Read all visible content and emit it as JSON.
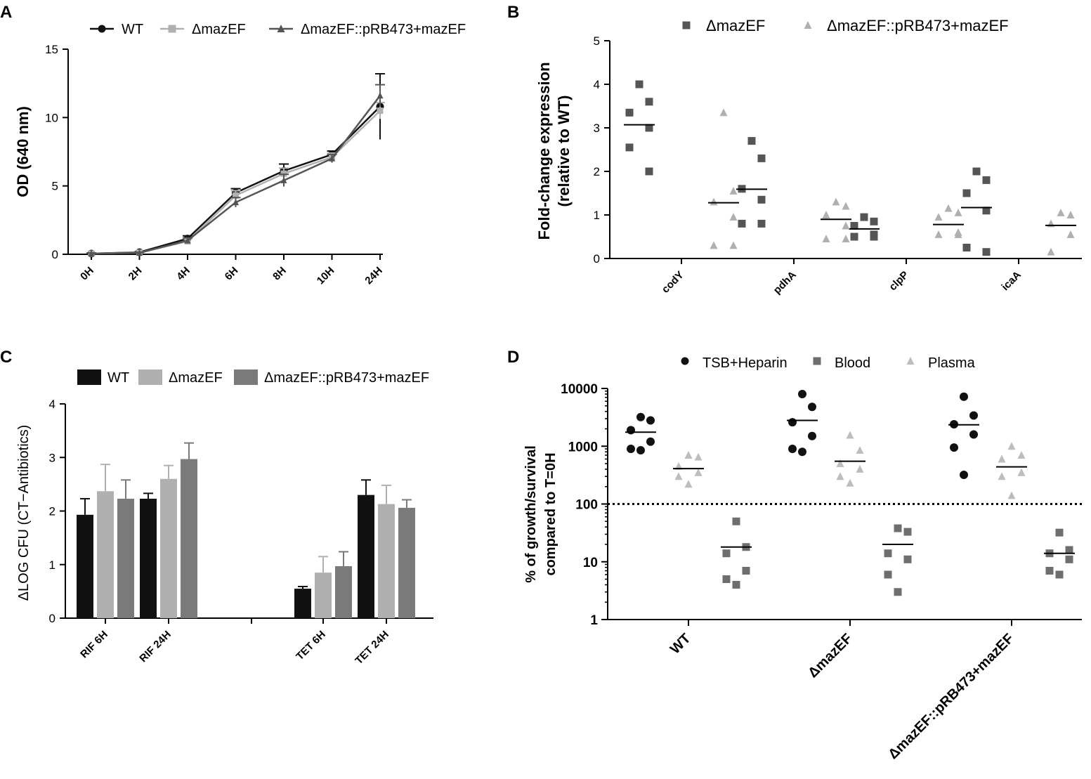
{
  "colors": {
    "black": "#111111",
    "light": "#b0b0b0",
    "mid": "#7a7a7a",
    "dark": "#555555",
    "blood": "#6e6e6e",
    "plasma": "#bdbdbd"
  },
  "chart_data": [
    {
      "panel": "A",
      "type": "line",
      "xlabel": "",
      "ylabel": "OD (640 nm)",
      "categories": [
        "0H",
        "2H",
        "4H",
        "6H",
        "8H",
        "10H",
        "24H"
      ],
      "yticks": [
        0,
        5,
        10,
        15
      ],
      "ylim": [
        0,
        15
      ],
      "legend": "top",
      "series": [
        {
          "name": "WT",
          "marker": "circle",
          "color": "#111111",
          "values": [
            0.05,
            0.15,
            1.15,
            4.5,
            6.1,
            7.3,
            10.8
          ],
          "err": [
            0.05,
            0.05,
            0.2,
            0.3,
            0.5,
            0.25,
            2.4
          ]
        },
        {
          "name": "ΔmazEF",
          "marker": "square",
          "color": "#b0b0b0",
          "values": [
            0.05,
            0.12,
            0.95,
            4.3,
            5.9,
            7.1,
            10.5
          ],
          "err": [
            0.05,
            0.05,
            0.2,
            0.35,
            0.4,
            0.3,
            0.6
          ]
        },
        {
          "name": "ΔmazEF::pRB473+mazEF",
          "marker": "triangle",
          "color": "#555555",
          "values": [
            0.05,
            0.1,
            1.0,
            3.8,
            5.4,
            7.0,
            11.6
          ],
          "err": [
            0.05,
            0.05,
            0.2,
            0.35,
            0.45,
            0.3,
            0.8
          ]
        }
      ]
    },
    {
      "panel": "B",
      "type": "scatter",
      "ylabel": "Fold-change expression (relative to WT)",
      "ylabel_line1": "Fold-change expression",
      "ylabel_line2": "(relative to WT)",
      "categories": [
        "codY",
        "pdhA",
        "clpP",
        "icaA"
      ],
      "yticks": [
        0,
        1,
        2,
        3,
        4,
        5
      ],
      "ylim": [
        0,
        5
      ],
      "legend": "top",
      "series": [
        {
          "name": "ΔmazEF",
          "marker": "square",
          "color": "#555555",
          "points": [
            [
              4.0,
              3.6,
              3.35,
              3.0,
              2.55,
              2.0
            ],
            [
              2.7,
              2.3,
              1.6,
              1.35,
              0.8,
              0.8
            ],
            [
              0.95,
              0.85,
              0.75,
              0.55,
              0.5,
              0.5
            ],
            [
              2.0,
              1.8,
              1.5,
              1.1,
              0.25,
              0.15
            ]
          ],
          "means": [
            3.07,
            1.59,
            0.68,
            1.17
          ]
        },
        {
          "name": "ΔmazEF::pRB473+mazEF",
          "marker": "triangle",
          "color": "#b0b0b0",
          "points": [
            [
              3.35,
              1.55,
              1.3,
              0.95,
              0.3,
              0.3
            ],
            [
              1.3,
              1.2,
              1.0,
              0.75,
              0.45,
              0.45
            ],
            [
              1.15,
              1.05,
              0.95,
              0.6,
              0.55,
              0.55
            ],
            [
              1.05,
              1.0,
              0.8,
              0.55,
              0.15
            ]
          ],
          "means": [
            1.28,
            0.9,
            0.78,
            0.76
          ]
        }
      ]
    },
    {
      "panel": "C",
      "type": "bar",
      "ylabel": "ΔLOG CFU (CT−Antibiotics)",
      "categories": [
        "RIF 6H",
        "RIF 24H",
        "",
        "TET 6H",
        "TET 24H"
      ],
      "yticks": [
        0,
        1,
        2,
        3,
        4
      ],
      "ylim": [
        0,
        4
      ],
      "legend": "top",
      "series": [
        {
          "name": "WT",
          "color": "#111111",
          "values": [
            1.93,
            2.23,
            null,
            0.55,
            2.3
          ],
          "err": [
            0.3,
            0.1,
            null,
            0.04,
            0.28
          ]
        },
        {
          "name": "ΔmazEF",
          "color": "#b0b0b0",
          "values": [
            2.37,
            2.6,
            null,
            0.85,
            2.13
          ],
          "err": [
            0.5,
            0.25,
            null,
            0.3,
            0.35
          ]
        },
        {
          "name": "ΔmazEF::pRB473+mazEF",
          "color": "#7a7a7a",
          "values": [
            2.23,
            2.97,
            null,
            0.97,
            2.06
          ],
          "err": [
            0.35,
            0.3,
            null,
            0.27,
            0.15
          ]
        }
      ]
    },
    {
      "panel": "D",
      "type": "scatter",
      "scale": "log",
      "ylabel": "% of growth/survival compared to T=0H",
      "ylabel_line1": "% of growth/survival",
      "ylabel_line2": "compared to T=0H",
      "categories": [
        "WT",
        "ΔmazEF",
        "ΔmazEF::pRB473+mazEF"
      ],
      "yticks": [
        1,
        10,
        100,
        1000,
        10000
      ],
      "ytick_labels": [
        "1",
        "10",
        "100",
        "1000",
        "10000"
      ],
      "ylim": [
        1,
        10000
      ],
      "reference_line": 100,
      "legend": "top",
      "series": [
        {
          "name": "TSB+Heparin",
          "marker": "circle",
          "color": "#111111",
          "points": [
            [
              3200,
              2800,
              1900,
              1200,
              900,
              850
            ],
            [
              8000,
              4800,
              2600,
              1500,
              900,
              800
            ],
            [
              7200,
              3400,
              2400,
              1600,
              950,
              320
            ]
          ],
          "means": [
            1750,
            2800,
            2350
          ]
        },
        {
          "name": "Blood",
          "marker": "square",
          "color": "#6e6e6e",
          "points": [
            [
              50,
              18,
              14,
              7,
              5,
              4
            ],
            [
              38,
              33,
              14,
              11,
              6,
              3
            ],
            [
              32,
              16,
              14,
              11,
              7,
              6
            ]
          ],
          "means": [
            18,
            20,
            14
          ]
        },
        {
          "name": "Plasma",
          "marker": "triangle",
          "color": "#bdbdbd",
          "points": [
            [
              700,
              650,
              450,
              350,
              300,
              220
            ],
            [
              1550,
              850,
              500,
              400,
              300,
              230
            ],
            [
              1000,
              700,
              600,
              350,
              300,
              140
            ]
          ],
          "means": [
            410,
            550,
            440
          ]
        }
      ]
    }
  ],
  "panel_labels": [
    "A",
    "B",
    "C",
    "D"
  ]
}
